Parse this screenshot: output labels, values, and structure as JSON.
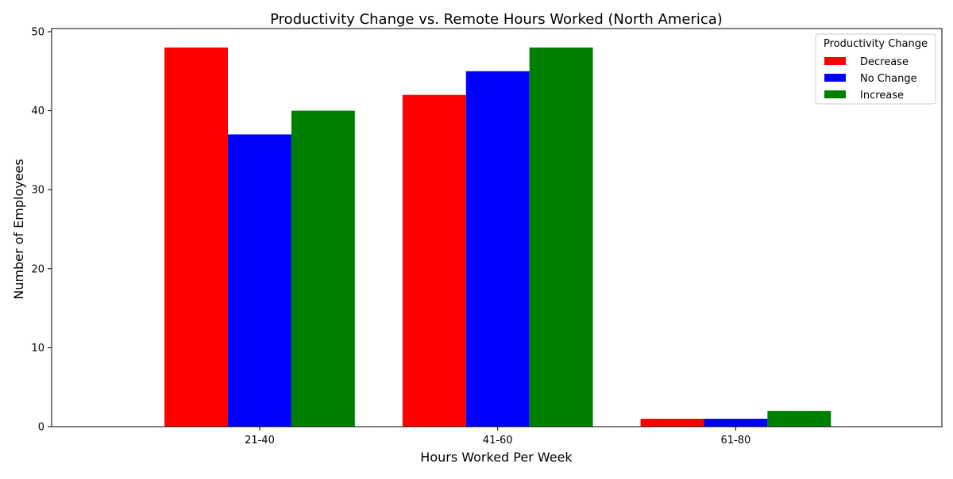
{
  "chart_data": {
    "type": "bar",
    "title": "Productivity Change vs. Remote Hours Worked (North America)",
    "xlabel": "Hours Worked Per Week",
    "ylabel": "Number of Employees",
    "categories": [
      "21-40",
      "41-60",
      "61-80"
    ],
    "series": [
      {
        "name": "Decrease",
        "values": [
          48,
          42,
          1
        ],
        "color": "#ff0000"
      },
      {
        "name": "No Change",
        "values": [
          37,
          45,
          1
        ],
        "color": "#0000ff"
      },
      {
        "name": "Increase",
        "values": [
          40,
          48,
          2
        ],
        "color": "#008000"
      }
    ],
    "ylim": [
      0,
      50.4
    ],
    "yticks": [
      0,
      10,
      20,
      30,
      40,
      50
    ],
    "grid": false,
    "legend": {
      "title": "Productivity Change",
      "placement": "top-right"
    }
  }
}
